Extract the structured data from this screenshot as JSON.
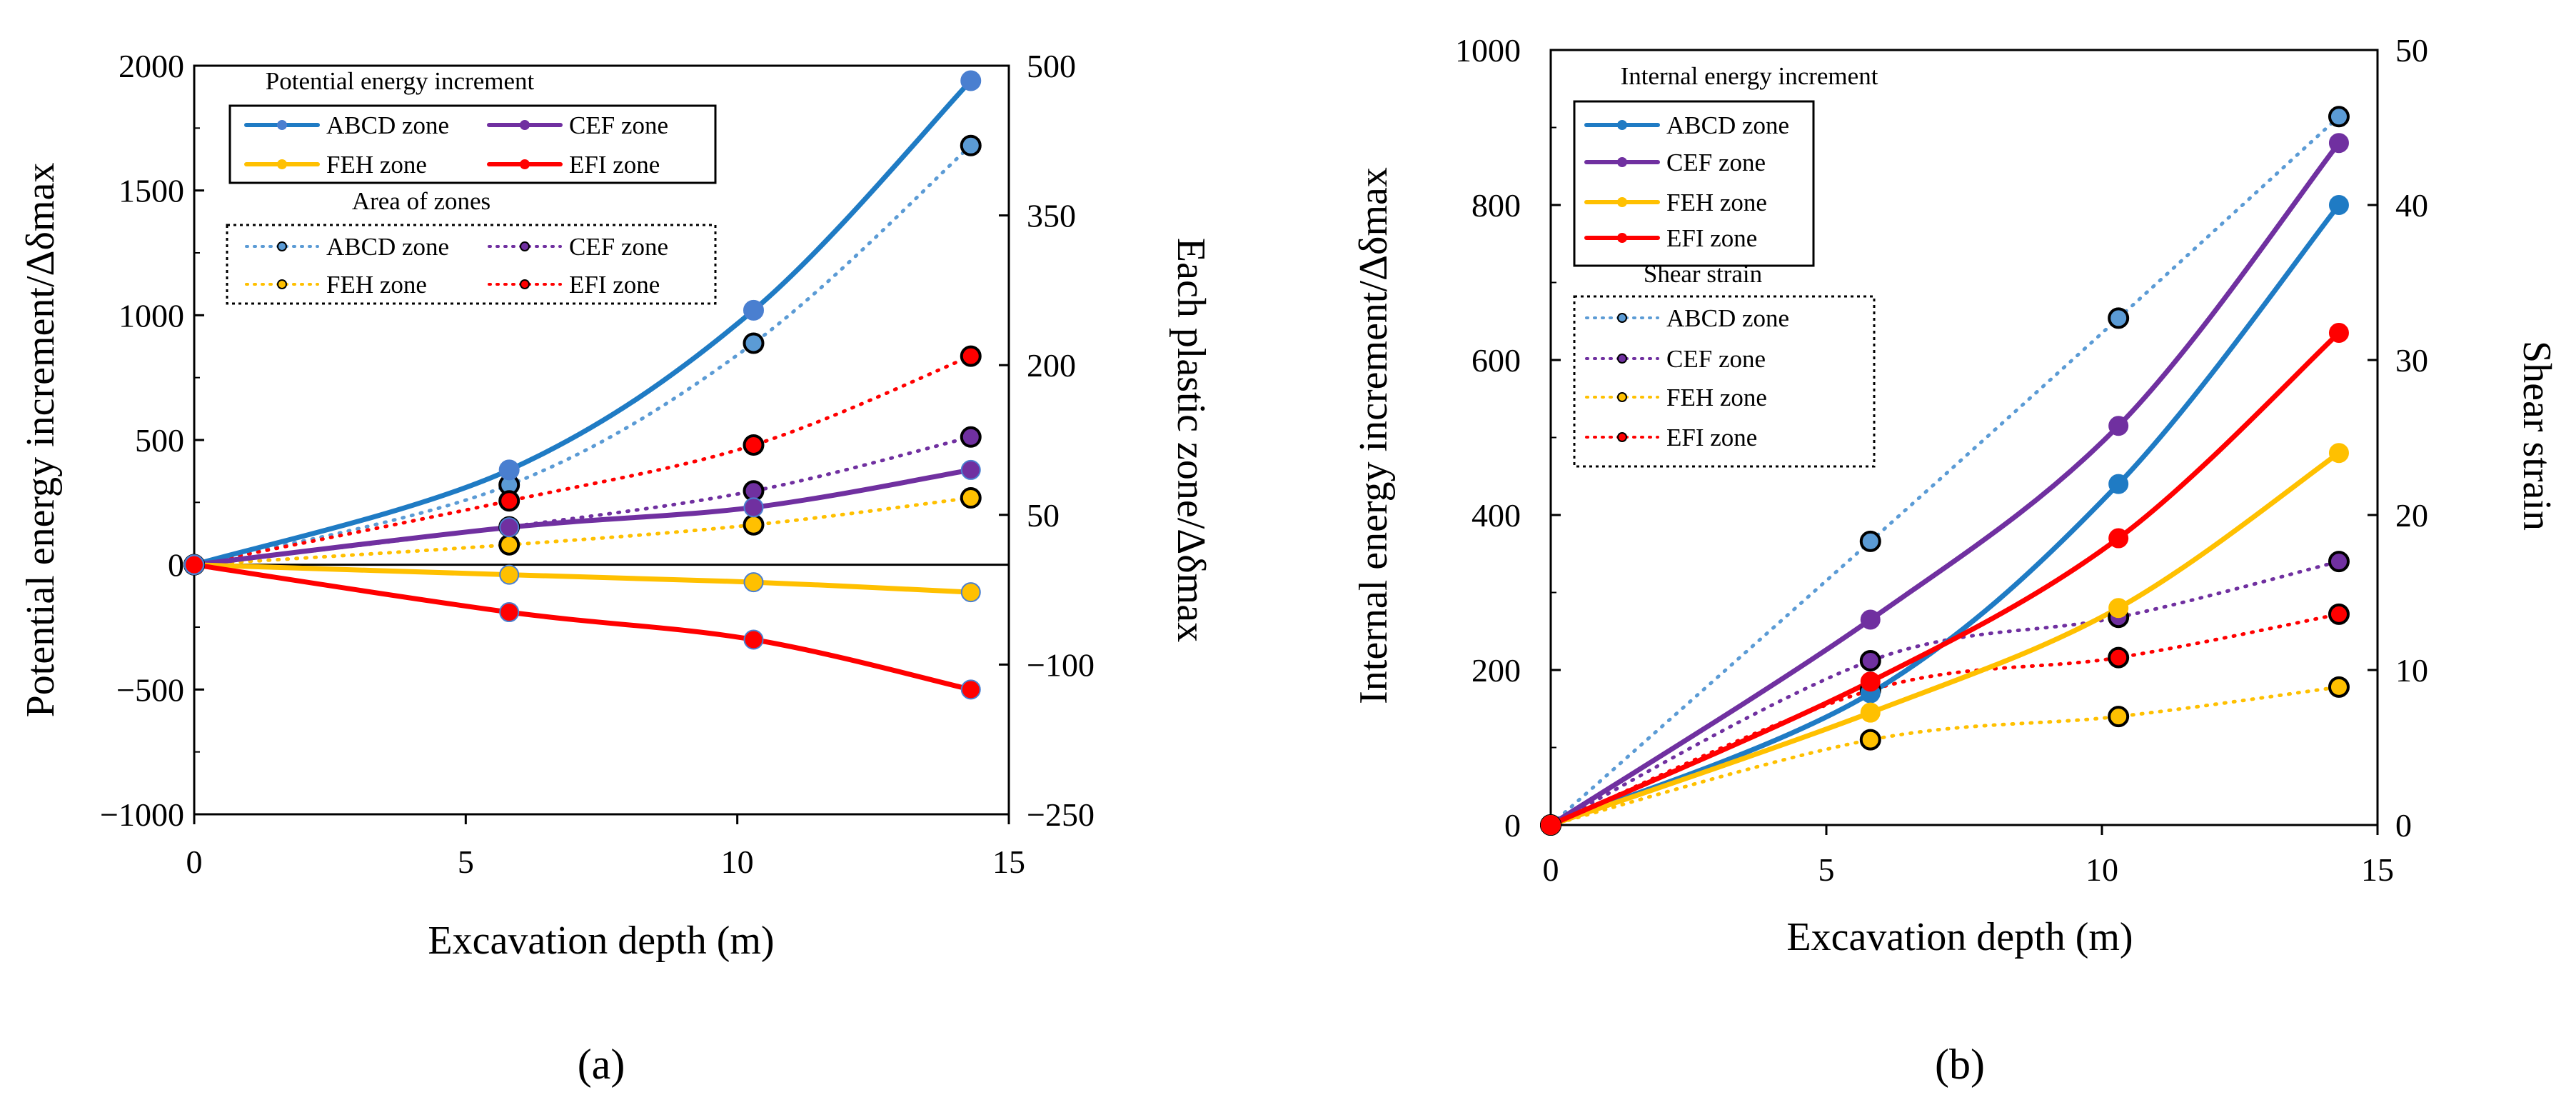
{
  "colors": {
    "blue": "#1F7BC4",
    "lightblue": "#5B9BD5",
    "purple": "#7030A0",
    "yellow": "#FFC000",
    "red": "#FF0000",
    "axis": "#000000"
  },
  "chart_data": [
    {
      "type": "line",
      "panel_label": "(a)",
      "x": [
        0,
        5.8,
        10.3,
        14.3
      ],
      "xlabel": "Excavation depth (m)",
      "xlim": [
        0,
        15
      ],
      "xticks": [
        0,
        5,
        10,
        15
      ],
      "ylabel": "Potential energy increment/Δδmax",
      "ylim": [
        -1000,
        2000
      ],
      "yticks": [
        -1000,
        -500,
        0,
        500,
        1000,
        1500,
        2000
      ],
      "ytick_labels": [
        "−1000",
        "−500",
        "0",
        "500",
        "1000",
        "1500",
        "2000"
      ],
      "y2label": "Each plastic zone/Δδmax",
      "y2lim": [
        -250,
        500
      ],
      "y2ticks": [
        -250,
        -100,
        50,
        200,
        350,
        500
      ],
      "y2tick_labels": [
        "−250",
        "−100",
        "50",
        "200",
        "350",
        "500"
      ],
      "legend_groups": [
        {
          "title": "Potential energy increment",
          "style": "solid"
        },
        {
          "title": "Area of zones",
          "style": "dotted"
        }
      ],
      "series": [
        {
          "name": "ABCD zone",
          "group": 0,
          "axis": "left",
          "color": "#1F7BC4",
          "marker_color": "#4A7FD0",
          "values": [
            0,
            380,
            1020,
            1940
          ]
        },
        {
          "name": "CEF zone",
          "group": 0,
          "axis": "left",
          "color": "#7030A0",
          "marker_color": "#7030A0",
          "values": [
            0,
            150,
            230,
            380
          ]
        },
        {
          "name": "FEH zone",
          "group": 0,
          "axis": "left",
          "color": "#FFC000",
          "marker_color": "#FFC000",
          "values": [
            0,
            -40,
            -70,
            -110
          ]
        },
        {
          "name": "EFI zone",
          "group": 0,
          "axis": "left",
          "color": "#FF0000",
          "marker_color": "#FF0000",
          "values": [
            0,
            -190,
            -300,
            -500
          ]
        },
        {
          "name": "ABCD zone",
          "group": 1,
          "axis": "right",
          "color": "#5B9BD5",
          "marker_color": "#5B9BD5",
          "values": [
            0,
            80,
            222,
            420
          ]
        },
        {
          "name": "CEF zone",
          "group": 1,
          "axis": "right",
          "color": "#7030A0",
          "marker_color": "#7030A0",
          "values": [
            0,
            38,
            74,
            128
          ]
        },
        {
          "name": "FEH zone",
          "group": 1,
          "axis": "right",
          "color": "#FFC000",
          "marker_color": "#FFC000",
          "values": [
            0,
            20,
            40,
            67
          ]
        },
        {
          "name": "EFI zone",
          "group": 1,
          "axis": "right",
          "color": "#FF0000",
          "marker_color": "#FF0000",
          "values": [
            0,
            64,
            120,
            209
          ]
        }
      ]
    },
    {
      "type": "line",
      "panel_label": "(b)",
      "x": [
        0,
        5.8,
        10.3,
        14.3
      ],
      "xlabel": "Excavation depth (m)",
      "xlim": [
        0,
        15
      ],
      "xticks": [
        0,
        5,
        10,
        15
      ],
      "ylabel": "Internal energy increment/Δδmax",
      "ylim": [
        0,
        1000
      ],
      "yticks": [
        0,
        200,
        400,
        600,
        800,
        1000
      ],
      "ytick_labels": [
        "0",
        "200",
        "400",
        "600",
        "800",
        "1000"
      ],
      "y2label": "Shear strain",
      "y2lim": [
        0,
        50
      ],
      "y2ticks": [
        0,
        10,
        20,
        30,
        40,
        50
      ],
      "y2tick_labels": [
        "0",
        "10",
        "20",
        "30",
        "40",
        "50"
      ],
      "legend_groups": [
        {
          "title": "Internal energy increment",
          "style": "solid"
        },
        {
          "title": "Shear strain",
          "style": "dotted"
        }
      ],
      "series": [
        {
          "name": "ABCD zone",
          "group": 0,
          "axis": "left",
          "color": "#1F7BC4",
          "marker_color": "#1F7BC4",
          "values": [
            0,
            170,
            440,
            800
          ]
        },
        {
          "name": "CEF zone",
          "group": 0,
          "axis": "left",
          "color": "#7030A0",
          "marker_color": "#7030A0",
          "values": [
            0,
            265,
            515,
            880
          ]
        },
        {
          "name": "FEH zone",
          "group": 0,
          "axis": "left",
          "color": "#FFC000",
          "marker_color": "#FFC000",
          "values": [
            0,
            145,
            280,
            480
          ]
        },
        {
          "name": "EFI zone",
          "group": 0,
          "axis": "left",
          "color": "#FF0000",
          "marker_color": "#FF0000",
          "values": [
            0,
            185,
            370,
            635
          ]
        },
        {
          "name": "ABCD zone",
          "group": 1,
          "axis": "right",
          "color": "#5B9BD5",
          "marker_color": "#5B9BD5",
          "values": [
            0,
            18.3,
            32.7,
            45.7
          ]
        },
        {
          "name": "CEF zone",
          "group": 1,
          "axis": "right",
          "color": "#7030A0",
          "marker_color": "#7030A0",
          "values": [
            0,
            10.6,
            13.4,
            17.0
          ]
        },
        {
          "name": "FEH zone",
          "group": 1,
          "axis": "right",
          "color": "#FFC000",
          "marker_color": "#FFC000",
          "values": [
            0,
            5.5,
            7.0,
            8.9
          ]
        },
        {
          "name": "EFI zone",
          "group": 1,
          "axis": "right",
          "color": "#FF0000",
          "marker_color": "#FF0000",
          "values": [
            0,
            8.7,
            10.8,
            13.6
          ]
        }
      ]
    }
  ]
}
